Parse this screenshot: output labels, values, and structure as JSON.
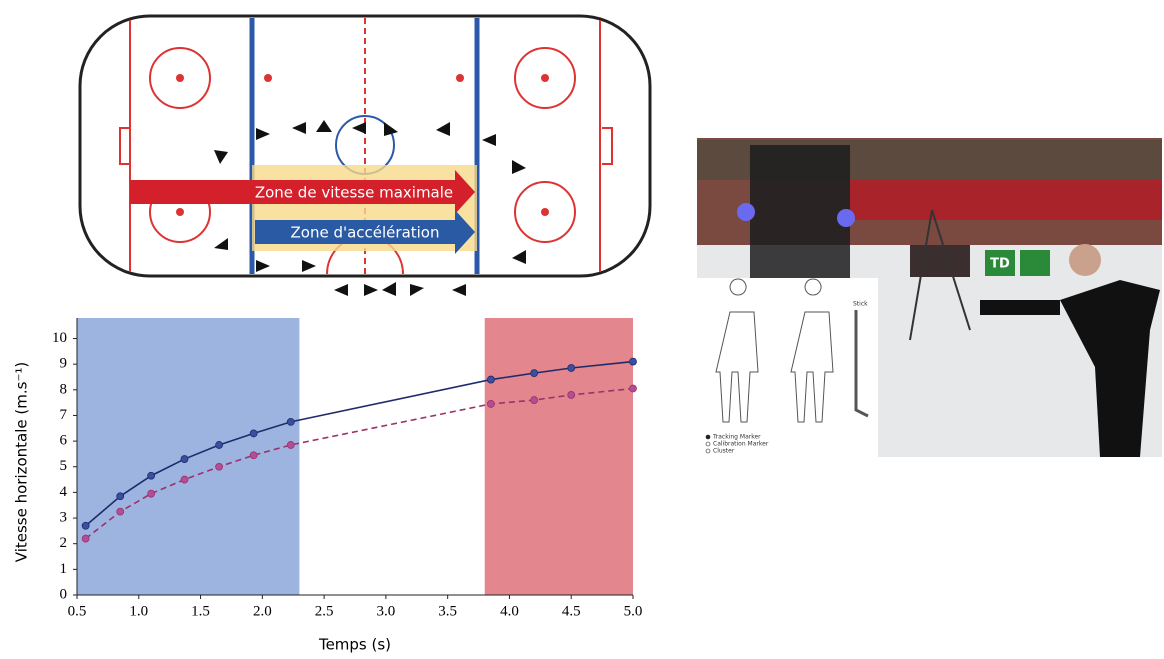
{
  "chart_data": {
    "type": "line",
    "xlabel": "Temps (s)",
    "ylabel": "Vitesse horizontale (m.s⁻¹)",
    "x": [
      0.57,
      0.85,
      1.1,
      1.37,
      1.65,
      1.93,
      2.23,
      3.85,
      4.2,
      4.5,
      5.0
    ],
    "series": [
      {
        "color": "#1f2a6b",
        "dashed": false,
        "values": [
          2.7,
          3.85,
          4.65,
          5.3,
          5.85,
          6.3,
          6.75,
          8.4,
          8.65,
          8.85,
          9.1
        ]
      },
      {
        "color": "#a0306a",
        "dashed": true,
        "values": [
          2.2,
          3.25,
          3.95,
          4.5,
          5.0,
          5.45,
          5.85,
          7.45,
          7.6,
          7.8,
          8.05
        ]
      }
    ],
    "highlight_spans": [
      {
        "x": [
          0.5,
          2.3
        ],
        "color": "#9db4e0"
      },
      {
        "x": [
          3.8,
          5.0
        ],
        "color": "#e3868e"
      }
    ],
    "xlim": [
      0.5,
      5.0
    ],
    "xticks": [
      0.5,
      {
        "value": 1,
        "label": "1.0"
      },
      1.5,
      {
        "value": 2,
        "label": "2.0"
      },
      2.5,
      {
        "value": 3,
        "label": "3.0"
      },
      3.5,
      {
        "value": 4,
        "label": "4.0"
      },
      4.5,
      {
        "value": 5,
        "label": "5.0"
      }
    ],
    "ylim": [
      0,
      10.8
    ],
    "yticks": [
      0,
      1,
      2,
      3,
      4,
      5,
      6,
      7,
      8,
      9,
      10
    ]
  },
  "rink": {
    "zone_max": "Zone de vitesse maximale",
    "zone_accel": "Zone d'accélération"
  },
  "photo": {
    "banner": "TD",
    "stick": "Stick",
    "legend": [
      "Tracking Marker",
      "Calibration Marker",
      "Cluster"
    ]
  }
}
